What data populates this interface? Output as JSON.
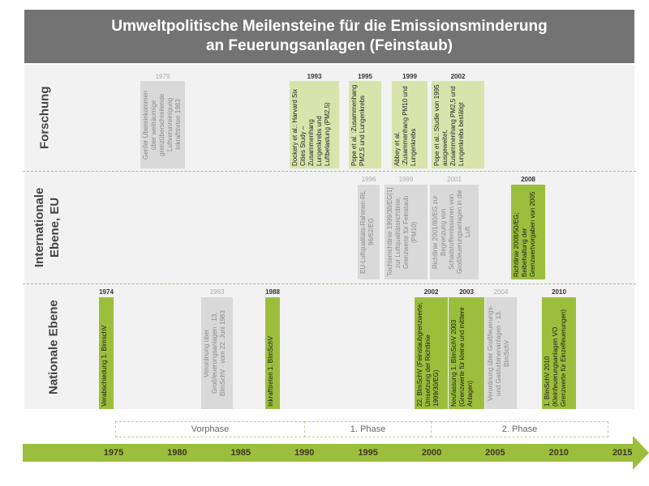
{
  "title": {
    "line1": "Umweltpolitische Meilensteine für die Emissionsminderung",
    "line2": "an Feuerungsanlagen (Feinstaub)"
  },
  "rows": {
    "forschung": "Forschung",
    "international": "Internationale Ebene, EU",
    "national": "Nationale Ebene"
  },
  "forschung": [
    {
      "year": "1979",
      "text": "Genfer Übereinkommen über weiträumige grenzüberschreitende Luftverunreinigung Inkrafttreten 1983",
      "style": "gray"
    },
    {
      "year": "1993",
      "text": "Dockery et al.: Harvard Six Cities Study – Zusammenhang Lungenkrebs und Luftbelastung (PM2,5)",
      "style": "light-green"
    },
    {
      "year": "1995",
      "text": "Pope et al. :Zusammenhang PM2,5 und Lungenkrebs",
      "style": "light-green"
    },
    {
      "year": "1999",
      "text": "Abbey et al. :Zusammenhang PM10 und Lungenkrebs",
      "style": "light-green"
    },
    {
      "year": "2002",
      "text": "Pope et al.: Studie von 1995 ausgeweitet, Zusammenhang PM2,5 und Lungenkrebs bestätigt",
      "style": "light-green"
    }
  ],
  "international": [
    {
      "year": "1996",
      "text": "EU-Luftqualitäts-Rahmen-RL 96/62/EG",
      "style": "gray"
    },
    {
      "year": "1999",
      "text": "Tochterrichtlinie 1999/30/EG[1] zur Luftqualitätsrichtlinie; Grenzwerte für Feinstaub (PM10)",
      "style": "gray"
    },
    {
      "year": "2001",
      "text": "Richtlinie 2001/80/EG zur Begrenzung von Schadstoffemissionen von Großfeuerungsanlagen in die Luft",
      "style": "gray"
    },
    {
      "year": "2008",
      "text": "Richtlinie 2008/50/EG; Beibehaltung der Grenzwertvorgaben von 2005",
      "style": "green"
    }
  ],
  "national": [
    {
      "year": "1974",
      "text": "Verabschiedung 1. BImschV",
      "style": "green"
    },
    {
      "year": "1983",
      "text": "Verordnung über Großfeuerungsanlagen - 13. BImSchV - vom 22. Juni 1983",
      "style": "gray"
    },
    {
      "year": "1988",
      "text": "Inkrafttreten 1. BImSchV",
      "style": "green"
    },
    {
      "year": "2002",
      "text": "22. BImSchV (Feinstaubgrenzwerte; Umsetzung der Richtlinie 1999/30/EG)",
      "style": "green"
    },
    {
      "year": "2003",
      "text": "Neufassung 1. BImSchV 2003 (Grenzwerte für kleine und mittlere Anlagen)",
      "style": "green"
    },
    {
      "year": "2004",
      "text": "Verordnung über Großfeuerungs- und Gasturbinenanlagen - 13. BImSchV",
      "style": "gray"
    },
    {
      "year": "2010",
      "text": "1. BImSchV 2010 (Kleinfeuerungsanlagen VO Grenzwerte für Einzelfeuerungen)",
      "style": "green"
    }
  ],
  "phases": [
    "Vorphase",
    "1. Phase",
    "2. Phase"
  ],
  "axis_ticks": [
    "1975",
    "1980",
    "1985",
    "1990",
    "1995",
    "2000",
    "2005",
    "2010",
    "2015"
  ],
  "colors": {
    "header": "#737373",
    "green": "#9cbe3d",
    "light_green": "#d8e4ac",
    "gray_box": "#d9d9d9",
    "row_bg": "#f2f2f2"
  }
}
